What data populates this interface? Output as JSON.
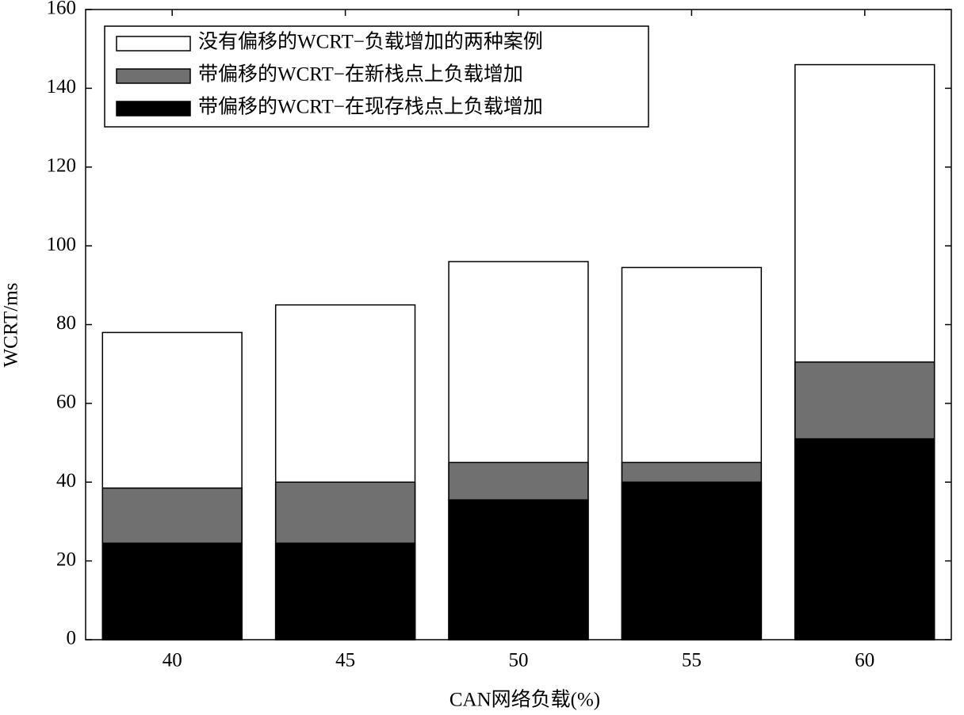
{
  "chart_data": {
    "type": "bar",
    "overlay": true,
    "xlabel": "CAN网络负载(%)",
    "ylabel": "WCRT/ms",
    "categories": [
      "40",
      "45",
      "50",
      "55",
      "60"
    ],
    "series": [
      {
        "name": "没有偏移的WCRT−负载增加的两种案例",
        "color": "#ffffff",
        "values": [
          78,
          85,
          96,
          94.5,
          146
        ]
      },
      {
        "name": "带偏移的WCRT−在新栈点上负载增加",
        "color": "#707070",
        "values": [
          38.5,
          40,
          45,
          45,
          70.5
        ]
      },
      {
        "name": "带偏移的WCRT−在现存栈点上负载增加",
        "color": "#000000",
        "values": [
          24.5,
          24.5,
          35.5,
          40,
          51
        ]
      }
    ],
    "ylim": [
      0,
      160
    ],
    "yticks": [
      0,
      20,
      40,
      60,
      80,
      100,
      120,
      140,
      160
    ],
    "legend": "upper left",
    "grid": false
  }
}
